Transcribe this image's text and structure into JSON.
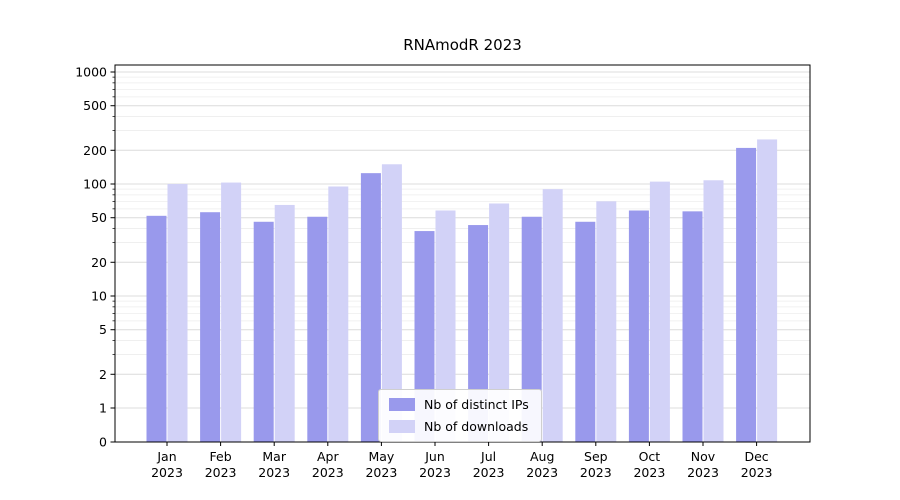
{
  "chart_data": {
    "type": "bar",
    "title": "RNAmodR 2023",
    "x_year": "2023",
    "categories": [
      "Jan",
      "Feb",
      "Mar",
      "Apr",
      "May",
      "Jun",
      "Jul",
      "Aug",
      "Sep",
      "Oct",
      "Nov",
      "Dec"
    ],
    "series": [
      {
        "name": "Nb of distinct IPs",
        "color": "#9999ec",
        "values": [
          52,
          56,
          46,
          51,
          125,
          38,
          43,
          51,
          46,
          58,
          57,
          210
        ]
      },
      {
        "name": "Nb of downloads",
        "color": "#d2d2f7",
        "values": [
          100,
          103,
          65,
          95,
          150,
          58,
          67,
          90,
          70,
          105,
          108,
          250
        ]
      }
    ],
    "y_ticks": [
      0,
      1,
      2,
      5,
      10,
      20,
      50,
      100,
      200,
      500,
      1000
    ],
    "scale": "symlog",
    "ylim": [
      0,
      1000
    ],
    "grid": true,
    "legend_position": "lower center"
  }
}
